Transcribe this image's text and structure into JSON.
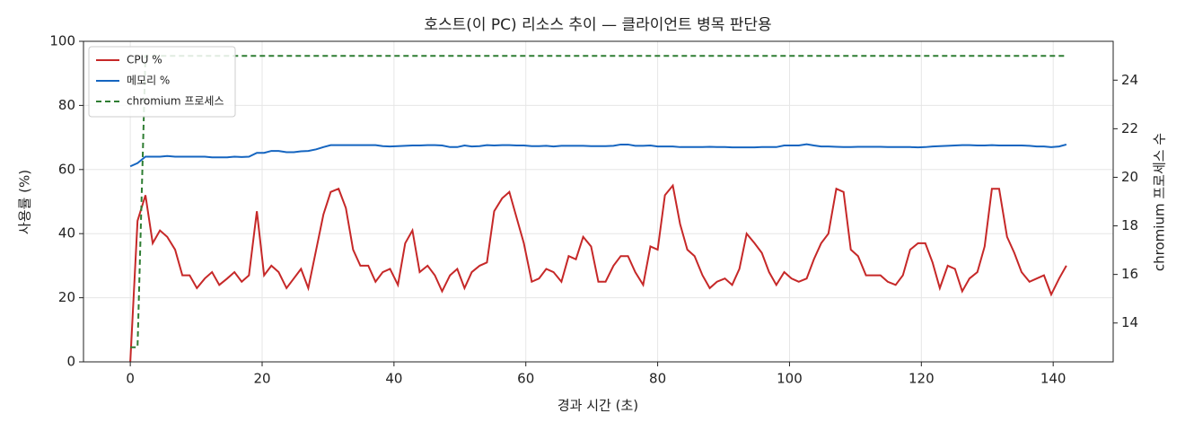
{
  "chart_data": {
    "type": "line",
    "title": "호스트(이 PC) 리소스 추이 — 클라이언트 병목 판단용",
    "xlabel": "경과 시간 (초)",
    "ylabel": "사용률 (%)",
    "y2label": "chromium 프로세스 수",
    "x": [
      0,
      1.1,
      2.3,
      3.4,
      4.5,
      5.6,
      6.8,
      7.9,
      9.0,
      10.1,
      11.3,
      12.4,
      13.5,
      14.7,
      15.8,
      16.9,
      18.0,
      19.2,
      20.3,
      21.4,
      22.5,
      23.7,
      24.8,
      25.9,
      27.0,
      28.2,
      29.3,
      30.4,
      31.6,
      32.7,
      33.8,
      34.9,
      36.1,
      37.2,
      38.3,
      39.4,
      40.6,
      41.7,
      42.8,
      43.9,
      45.1,
      46.2,
      47.3,
      48.5,
      49.6,
      50.7,
      51.8,
      53.0,
      54.1,
      55.2,
      56.4,
      57.5,
      58.6,
      59.7,
      60.9,
      62.0,
      63.1,
      64.2,
      65.4,
      66.5,
      67.6,
      68.7,
      69.9,
      71.0,
      72.1,
      73.3,
      74.4,
      75.5,
      76.6,
      77.8,
      78.9,
      80.0,
      81.1,
      82.3,
      83.4,
      84.5,
      85.6,
      86.8,
      87.9,
      89.0,
      90.2,
      91.3,
      92.4,
      93.5,
      94.7,
      95.8,
      96.9,
      98.0,
      99.2,
      100.3,
      101.4,
      102.6,
      103.7,
      104.8,
      105.9,
      107.1,
      108.2,
      109.3,
      110.4,
      111.6,
      112.7,
      113.8,
      114.9,
      116.1,
      117.2,
      118.3,
      119.5,
      120.6,
      121.7,
      122.8,
      124.0,
      125.1,
      126.2,
      127.3,
      128.5,
      129.6,
      130.7,
      131.8,
      133.0,
      134.1,
      135.2,
      136.4,
      137.5,
      138.6,
      139.7,
      140.9,
      142.0
    ],
    "series": [
      {
        "name": "CPU %",
        "color": "#c62828",
        "linestyle": "solid",
        "values": [
          0,
          44,
          52,
          37,
          41,
          39,
          35,
          27,
          27,
          23,
          26,
          28,
          24,
          26,
          28,
          25,
          27,
          47,
          27,
          30,
          28,
          23,
          26,
          29,
          23,
          35,
          46,
          53,
          54,
          48,
          35,
          30,
          30,
          25,
          28,
          29,
          24,
          37,
          41,
          28,
          30,
          27,
          22,
          27,
          29,
          23,
          28,
          30,
          31,
          47,
          51,
          53,
          45,
          37,
          25,
          26,
          29,
          28,
          25,
          33,
          32,
          39,
          36,
          25,
          25,
          30,
          33,
          33,
          28,
          24,
          36,
          35,
          52,
          55,
          43,
          35,
          33,
          27,
          23,
          25,
          26,
          24,
          29,
          40,
          37,
          34,
          28,
          24,
          28,
          26,
          25,
          26,
          32,
          37,
          40,
          54,
          53,
          35,
          33,
          27,
          27,
          27,
          25,
          24,
          27,
          35,
          37,
          37,
          31,
          23,
          30,
          29,
          22,
          26,
          28,
          36,
          54,
          54,
          39,
          34,
          28,
          25,
          26,
          27,
          21,
          26,
          30
        ]
      },
      {
        "name": "메모리 %",
        "color": "#1565c0",
        "linestyle": "solid",
        "values": [
          61,
          62,
          64,
          64,
          64,
          64.2,
          64,
          64,
          64,
          64,
          64,
          63.8,
          63.8,
          63.8,
          64,
          63.9,
          64,
          65.2,
          65.2,
          65.8,
          65.8,
          65.4,
          65.4,
          65.7,
          65.8,
          66.3,
          67,
          67.6,
          67.6,
          67.6,
          67.6,
          67.6,
          67.6,
          67.6,
          67.3,
          67.2,
          67.3,
          67.4,
          67.5,
          67.5,
          67.6,
          67.6,
          67.5,
          67,
          67,
          67.5,
          67.2,
          67.3,
          67.6,
          67.5,
          67.6,
          67.6,
          67.5,
          67.5,
          67.3,
          67.3,
          67.4,
          67.2,
          67.4,
          67.4,
          67.4,
          67.4,
          67.3,
          67.3,
          67.3,
          67.4,
          67.8,
          67.8,
          67.4,
          67.4,
          67.5,
          67.2,
          67.2,
          67.2,
          67,
          67,
          67,
          67,
          67.1,
          67,
          67,
          66.9,
          66.9,
          66.9,
          66.9,
          67,
          67,
          67,
          67.5,
          67.5,
          67.5,
          67.9,
          67.5,
          67.2,
          67.2,
          67.1,
          67,
          67,
          67.1,
          67.1,
          67.1,
          67.1,
          67,
          67,
          67,
          67,
          66.9,
          67,
          67.2,
          67.3,
          67.4,
          67.5,
          67.6,
          67.6,
          67.5,
          67.5,
          67.6,
          67.5,
          67.5,
          67.5,
          67.5,
          67.4,
          67.2,
          67.2,
          67,
          67.2,
          67.8
        ]
      },
      {
        "name": "chromium 프로세스",
        "color": "#2e7d32",
        "linestyle": "dashed",
        "axis": "y2",
        "values": [
          13,
          13,
          25,
          25,
          25,
          25,
          25,
          25,
          25,
          25,
          25,
          25,
          25,
          25,
          25,
          25,
          25,
          25,
          25,
          25,
          25,
          25,
          25,
          25,
          25,
          25,
          25,
          25,
          25,
          25,
          25,
          25,
          25,
          25,
          25,
          25,
          25,
          25,
          25,
          25,
          25,
          25,
          25,
          25,
          25,
          25,
          25,
          25,
          25,
          25,
          25,
          25,
          25,
          25,
          25,
          25,
          25,
          25,
          25,
          25,
          25,
          25,
          25,
          25,
          25,
          25,
          25,
          25,
          25,
          25,
          25,
          25,
          25,
          25,
          25,
          25,
          25,
          25,
          25,
          25,
          25,
          25,
          25,
          25,
          25,
          25,
          25,
          25,
          25,
          25,
          25,
          25,
          25,
          25,
          25,
          25,
          25,
          25,
          25,
          25,
          25,
          25,
          25,
          25,
          25,
          25,
          25,
          25,
          25,
          25,
          25,
          25,
          25,
          25,
          25,
          25,
          25,
          25,
          25,
          25,
          25,
          25,
          25,
          25,
          25,
          25,
          25
        ]
      }
    ],
    "xlim": [
      -7.1,
      149.1
    ],
    "xticks": [
      0,
      20,
      40,
      60,
      80,
      100,
      120,
      140
    ],
    "ylim": [
      0,
      100
    ],
    "yticks": [
      0,
      20,
      40,
      60,
      80,
      100
    ],
    "y2lim": [
      12.4,
      25.6
    ],
    "y2ticks": [
      14,
      16,
      18,
      20,
      22,
      24
    ],
    "grid": true,
    "legend": "upper-left"
  }
}
